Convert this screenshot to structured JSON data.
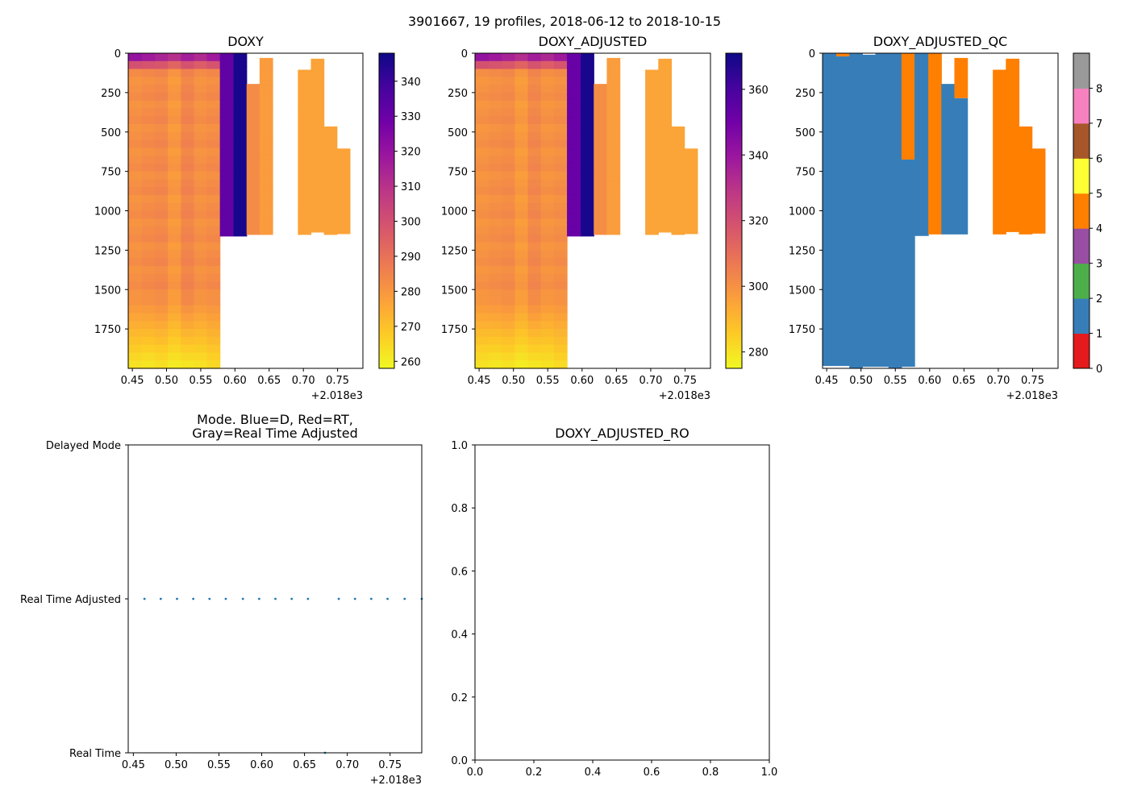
{
  "figure": {
    "suptitle": "3901667, 19 profiles, 2018-06-12 to 2018-10-15"
  },
  "colors": {
    "plasma": [
      "#0d0887",
      "#46039f",
      "#7201a8",
      "#9c179e",
      "#bd3786",
      "#d8576b",
      "#ed7953",
      "#fb9f3a",
      "#fdca26",
      "#f0f921"
    ],
    "qc": [
      "#e41a1c",
      "#377eb8",
      "#4daf4a",
      "#984ea3",
      "#ff7f00",
      "#ffff33",
      "#a65628",
      "#f781bf",
      "#999999"
    ],
    "mode_dots": "#1f77b4"
  },
  "chart_data": [
    {
      "id": "doxy",
      "type": "heatmap",
      "title": "DOXY",
      "xlim": [
        0.444,
        0.787
      ],
      "ylim": [
        2000,
        0
      ],
      "xticks": [
        0.45,
        0.5,
        0.55,
        0.6,
        0.65,
        0.7,
        0.75
      ],
      "xtick_labels": [
        "0.45",
        "0.50",
        "0.55",
        "0.60",
        "0.65",
        "0.70",
        "0.75"
      ],
      "x_offset_label": "+2.018e3",
      "yticks": [
        0,
        250,
        500,
        750,
        1000,
        1250,
        1500,
        1750
      ],
      "ytick_labels": [
        "0",
        "250",
        "500",
        "750",
        "1000",
        "1250",
        "1500",
        "1750"
      ],
      "colormap": "plasma",
      "clim": [
        258,
        348
      ],
      "colorbar_ticks": [
        260,
        270,
        280,
        290,
        300,
        310,
        320,
        330,
        340
      ],
      "colorbar_tick_labels": [
        "260",
        "270",
        "280",
        "290",
        "300",
        "310",
        "320",
        "330",
        "340"
      ],
      "profiles": [
        {
          "x0": 0.444,
          "x1": 0.464,
          "max_depth": 2000,
          "surface": 330,
          "mid": 282,
          "deep": 262
        },
        {
          "x0": 0.464,
          "x1": 0.483,
          "max_depth": 2000,
          "surface": 326,
          "mid": 283,
          "deep": 261
        },
        {
          "x0": 0.483,
          "x1": 0.502,
          "max_depth": 2000,
          "surface": 322,
          "mid": 284,
          "deep": 262
        },
        {
          "x0": 0.502,
          "x1": 0.521,
          "max_depth": 2000,
          "surface": 318,
          "mid": 280,
          "deep": 260
        },
        {
          "x0": 0.521,
          "x1": 0.54,
          "max_depth": 2000,
          "surface": 324,
          "mid": 285,
          "deep": 261
        },
        {
          "x0": 0.54,
          "x1": 0.559,
          "max_depth": 2000,
          "surface": 320,
          "mid": 282,
          "deep": 262
        },
        {
          "x0": 0.559,
          "x1": 0.578,
          "max_depth": 2000,
          "surface": 326,
          "mid": 283,
          "deep": 264
        },
        {
          "x0": 0.578,
          "x1": 0.598,
          "max_depth": 1160,
          "surface": 332,
          "mid": 332,
          "deep": 332,
          "upper_depth": 300
        },
        {
          "x0": 0.598,
          "x1": 0.617,
          "max_depth": 1160,
          "surface": 346,
          "mid": 346,
          "deep": 346
        },
        {
          "x0": 0.617,
          "x1": 0.636,
          "max_depth": 1150,
          "surface": 283,
          "mid": 283,
          "deep": 283,
          "min_depth": 195
        },
        {
          "x0": 0.636,
          "x1": 0.655,
          "max_depth": 1150,
          "surface": 279,
          "mid": 279,
          "deep": 279,
          "min_depth": 30
        },
        {
          "x0": 0.692,
          "x1": 0.711,
          "max_depth": 1150,
          "surface": 277,
          "mid": 277,
          "deep": 277,
          "min_depth": 105
        },
        {
          "x0": 0.711,
          "x1": 0.73,
          "max_depth": 1135,
          "surface": 277,
          "mid": 277,
          "deep": 277,
          "min_depth": 35
        },
        {
          "x0": 0.73,
          "x1": 0.749,
          "max_depth": 1150,
          "surface": 277,
          "mid": 277,
          "deep": 277,
          "min_depth": 465
        },
        {
          "x0": 0.749,
          "x1": 0.768,
          "max_depth": 1145,
          "surface": 277,
          "mid": 277,
          "deep": 277,
          "min_depth": 605
        }
      ]
    },
    {
      "id": "doxy_adjusted",
      "type": "heatmap",
      "title": "DOXY_ADJUSTED",
      "xlim": [
        0.444,
        0.787
      ],
      "ylim": [
        2000,
        0
      ],
      "xticks": [
        0.45,
        0.5,
        0.55,
        0.6,
        0.65,
        0.7,
        0.75
      ],
      "xtick_labels": [
        "0.45",
        "0.50",
        "0.55",
        "0.60",
        "0.65",
        "0.70",
        "0.75"
      ],
      "x_offset_label": "+2.018e3",
      "yticks": [
        0,
        250,
        500,
        750,
        1000,
        1250,
        1500,
        1750
      ],
      "ytick_labels": [
        "0",
        "250",
        "500",
        "750",
        "1000",
        "1250",
        "1500",
        "1750"
      ],
      "colormap": "plasma",
      "clim": [
        275,
        371
      ],
      "colorbar_ticks": [
        280,
        300,
        320,
        340,
        360
      ],
      "colorbar_tick_labels": [
        "280",
        "300",
        "320",
        "340",
        "360"
      ],
      "profiles": [
        {
          "x0": 0.444,
          "x1": 0.464,
          "max_depth": 2000,
          "surface": 352,
          "mid": 300,
          "deep": 279
        },
        {
          "x0": 0.464,
          "x1": 0.483,
          "max_depth": 2000,
          "surface": 348,
          "mid": 301,
          "deep": 278
        },
        {
          "x0": 0.483,
          "x1": 0.502,
          "max_depth": 2000,
          "surface": 344,
          "mid": 302,
          "deep": 279
        },
        {
          "x0": 0.502,
          "x1": 0.521,
          "max_depth": 2000,
          "surface": 340,
          "mid": 298,
          "deep": 277
        },
        {
          "x0": 0.521,
          "x1": 0.54,
          "max_depth": 2000,
          "surface": 346,
          "mid": 303,
          "deep": 278
        },
        {
          "x0": 0.54,
          "x1": 0.559,
          "max_depth": 2000,
          "surface": 342,
          "mid": 300,
          "deep": 279
        },
        {
          "x0": 0.559,
          "x1": 0.578,
          "max_depth": 2000,
          "surface": 348,
          "mid": 301,
          "deep": 281
        },
        {
          "x0": 0.578,
          "x1": 0.598,
          "max_depth": 1160,
          "surface": 352,
          "mid": 352,
          "deep": 352,
          "upper_depth": 300
        },
        {
          "x0": 0.598,
          "x1": 0.617,
          "max_depth": 1160,
          "surface": 369,
          "mid": 369,
          "deep": 369
        },
        {
          "x0": 0.617,
          "x1": 0.636,
          "max_depth": 1150,
          "surface": 301,
          "mid": 301,
          "deep": 301,
          "min_depth": 195
        },
        {
          "x0": 0.636,
          "x1": 0.655,
          "max_depth": 1150,
          "surface": 297,
          "mid": 297,
          "deep": 297,
          "min_depth": 30
        },
        {
          "x0": 0.692,
          "x1": 0.711,
          "max_depth": 1150,
          "surface": 295,
          "mid": 295,
          "deep": 295,
          "min_depth": 105
        },
        {
          "x0": 0.711,
          "x1": 0.73,
          "max_depth": 1135,
          "surface": 295,
          "mid": 295,
          "deep": 295,
          "min_depth": 35
        },
        {
          "x0": 0.73,
          "x1": 0.749,
          "max_depth": 1150,
          "surface": 295,
          "mid": 295,
          "deep": 295,
          "min_depth": 465
        },
        {
          "x0": 0.749,
          "x1": 0.768,
          "max_depth": 1145,
          "surface": 295,
          "mid": 295,
          "deep": 295,
          "min_depth": 605
        }
      ]
    },
    {
      "id": "doxy_adjusted_qc",
      "type": "heatmap",
      "title": "DOXY_ADJUSTED_QC",
      "xlim": [
        0.444,
        0.787
      ],
      "ylim": [
        2000,
        0
      ],
      "xticks": [
        0.45,
        0.5,
        0.55,
        0.6,
        0.65,
        0.7,
        0.75
      ],
      "xtick_labels": [
        "0.45",
        "0.50",
        "0.55",
        "0.60",
        "0.65",
        "0.70",
        "0.75"
      ],
      "x_offset_label": "+2.018e3",
      "yticks": [
        0,
        250,
        500,
        750,
        1000,
        1250,
        1500,
        1750
      ],
      "ytick_labels": [
        "0",
        "250",
        "500",
        "750",
        "1000",
        "1250",
        "1500",
        "1750"
      ],
      "colormap": "qc",
      "clim": [
        0,
        9
      ],
      "colorbar_ticks": [
        0,
        1,
        2,
        3,
        4,
        5,
        6,
        7,
        8
      ],
      "colorbar_tick_labels": [
        "0",
        "1",
        "2",
        "3",
        "4",
        "5",
        "6",
        "7",
        "8"
      ],
      "cells": [
        {
          "x0": 0.444,
          "x1": 0.464,
          "d0": 0,
          "d1": 1985,
          "qc": 1
        },
        {
          "x0": 0.464,
          "x1": 0.483,
          "d0": 20,
          "d1": 1985,
          "qc": 1
        },
        {
          "x0": 0.464,
          "x1": 0.483,
          "d0": 0,
          "d1": 20,
          "qc": 4
        },
        {
          "x0": 0.483,
          "x1": 0.502,
          "d0": 0,
          "d1": 2000,
          "qc": 1
        },
        {
          "x0": 0.502,
          "x1": 0.521,
          "d0": 10,
          "d1": 1990,
          "qc": 1
        },
        {
          "x0": 0.521,
          "x1": 0.54,
          "d0": 0,
          "d1": 1990,
          "qc": 1
        },
        {
          "x0": 0.54,
          "x1": 0.559,
          "d0": 0,
          "d1": 2000,
          "qc": 1
        },
        {
          "x0": 0.559,
          "x1": 0.578,
          "d0": 675,
          "d1": 1990,
          "qc": 1
        },
        {
          "x0": 0.559,
          "x1": 0.578,
          "d0": 0,
          "d1": 675,
          "qc": 4
        },
        {
          "x0": 0.578,
          "x1": 0.598,
          "d0": 0,
          "d1": 1160,
          "qc": 1
        },
        {
          "x0": 0.598,
          "x1": 0.617,
          "d0": 0,
          "d1": 1150,
          "qc": 4
        },
        {
          "x0": 0.617,
          "x1": 0.636,
          "d0": 195,
          "d1": 1150,
          "qc": 1
        },
        {
          "x0": 0.636,
          "x1": 0.655,
          "d0": 285,
          "d1": 1150,
          "qc": 1
        },
        {
          "x0": 0.636,
          "x1": 0.655,
          "d0": 30,
          "d1": 285,
          "qc": 4
        },
        {
          "x0": 0.692,
          "x1": 0.711,
          "d0": 105,
          "d1": 1150,
          "qc": 4
        },
        {
          "x0": 0.711,
          "x1": 0.73,
          "d0": 35,
          "d1": 1135,
          "qc": 4
        },
        {
          "x0": 0.73,
          "x1": 0.749,
          "d0": 465,
          "d1": 1150,
          "qc": 4
        },
        {
          "x0": 0.749,
          "x1": 0.768,
          "d0": 605,
          "d1": 1145,
          "qc": 4
        }
      ]
    },
    {
      "id": "mode",
      "type": "scatter",
      "title_lines": [
        "Mode. Blue=D, Red=RT,",
        "Gray=Real Time Adjusted"
      ],
      "xlim": [
        0.444,
        0.787
      ],
      "ylim": [
        0,
        2
      ],
      "xticks": [
        0.45,
        0.5,
        0.55,
        0.6,
        0.65,
        0.7,
        0.75
      ],
      "xtick_labels": [
        "0.45",
        "0.50",
        "0.55",
        "0.60",
        "0.65",
        "0.70",
        "0.75"
      ],
      "x_offset_label": "+2.018e3",
      "yticks": [
        0,
        1,
        2
      ],
      "ytick_labels": [
        "Real Time",
        "Real Time Adjusted",
        "Delayed Mode"
      ],
      "points": [
        {
          "x": 0.463,
          "y": 1
        },
        {
          "x": 0.482,
          "y": 1
        },
        {
          "x": 0.501,
          "y": 1
        },
        {
          "x": 0.52,
          "y": 1
        },
        {
          "x": 0.539,
          "y": 1
        },
        {
          "x": 0.558,
          "y": 1
        },
        {
          "x": 0.578,
          "y": 1
        },
        {
          "x": 0.597,
          "y": 1
        },
        {
          "x": 0.616,
          "y": 1
        },
        {
          "x": 0.635,
          "y": 1
        },
        {
          "x": 0.654,
          "y": 1
        },
        {
          "x": 0.674,
          "y": 0
        },
        {
          "x": 0.69,
          "y": 1
        },
        {
          "x": 0.709,
          "y": 1
        },
        {
          "x": 0.728,
          "y": 1
        },
        {
          "x": 0.747,
          "y": 1
        },
        {
          "x": 0.767,
          "y": 1
        },
        {
          "x": 0.787,
          "y": 1
        }
      ]
    },
    {
      "id": "doxy_adjusted_ro",
      "type": "line",
      "title": "DOXY_ADJUSTED_RO",
      "xlim": [
        0,
        1
      ],
      "ylim": [
        0,
        1
      ],
      "xticks": [
        0,
        0.2,
        0.4,
        0.6,
        0.8,
        1.0
      ],
      "xtick_labels": [
        "0.0",
        "0.2",
        "0.4",
        "0.6",
        "0.8",
        "1.0"
      ],
      "yticks": [
        0,
        0.2,
        0.4,
        0.6,
        0.8,
        1.0
      ],
      "ytick_labels": [
        "0.0",
        "0.2",
        "0.4",
        "0.6",
        "0.8",
        "1.0"
      ],
      "series": []
    }
  ]
}
